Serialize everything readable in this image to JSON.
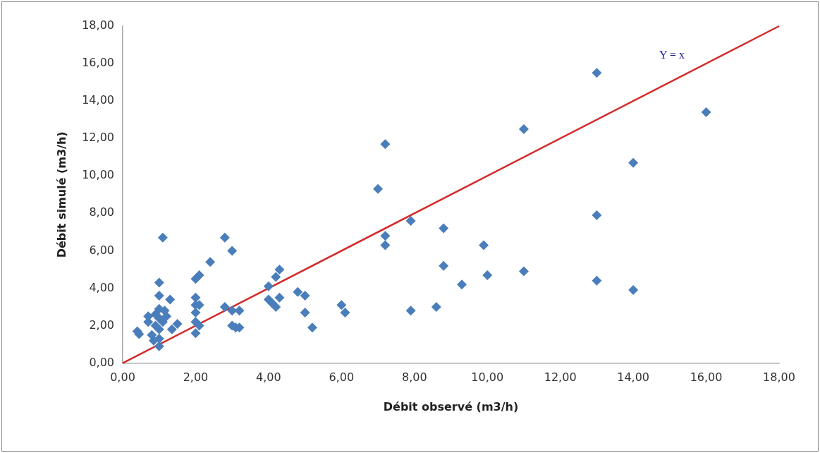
{
  "chart_data": {
    "type": "scatter",
    "xlabel": "Débit observé (m3/h)",
    "ylabel": "Débit simulé (m3/h)",
    "xlim": [
      0,
      18
    ],
    "ylim": [
      0,
      18
    ],
    "xticks": [
      {
        "value": 0,
        "label": "0,00"
      },
      {
        "value": 2,
        "label": "2,00"
      },
      {
        "value": 4,
        "label": "4,00"
      },
      {
        "value": 6,
        "label": "6,00"
      },
      {
        "value": 8,
        "label": "8,00"
      },
      {
        "value": 10,
        "label": "10,00"
      },
      {
        "value": 12,
        "label": "12,00"
      },
      {
        "value": 14,
        "label": "14,00"
      },
      {
        "value": 16,
        "label": "16,00"
      },
      {
        "value": 18,
        "label": "18,00"
      }
    ],
    "yticks": [
      {
        "value": 0,
        "label": "0,00"
      },
      {
        "value": 2,
        "label": "2,00"
      },
      {
        "value": 4,
        "label": "4,00"
      },
      {
        "value": 6,
        "label": "6,00"
      },
      {
        "value": 8,
        "label": "8,00"
      },
      {
        "value": 10,
        "label": "10,00"
      },
      {
        "value": 12,
        "label": "12,00"
      },
      {
        "value": 14,
        "label": "14,00"
      },
      {
        "value": 16,
        "label": "16,00"
      },
      {
        "value": 18,
        "label": "18,00"
      }
    ],
    "grid": false,
    "legend": false,
    "marker": "diamond",
    "series": [
      {
        "type": "scatter",
        "color": "#4a7ebb",
        "x": [
          0.4,
          0.45,
          0.7,
          0.7,
          0.8,
          0.85,
          0.9,
          0.9,
          1.0,
          1.0,
          1.0,
          1.0,
          1.0,
          1.0,
          1.0,
          1.1,
          1.1,
          1.15,
          1.2,
          1.3,
          1.35,
          1.5,
          2.0,
          2.0,
          2.0,
          2.0,
          2.0,
          2.0,
          2.1,
          2.1,
          2.1,
          2.4,
          2.8,
          2.8,
          3.0,
          3.0,
          3.0,
          3.1,
          3.2,
          3.2,
          4.0,
          4.0,
          4.1,
          4.2,
          4.2,
          4.3,
          4.3,
          4.8,
          5.0,
          5.0,
          5.2,
          6.0,
          6.1,
          7.0,
          7.2,
          7.2,
          7.2,
          7.9,
          7.9,
          8.6,
          8.8,
          8.8,
          9.3,
          9.9,
          10.0,
          11.0,
          11.0,
          13.0,
          13.0,
          13.0,
          14.0,
          14.0,
          16.0
        ],
        "values": [
          1.7,
          1.55,
          2.5,
          2.2,
          1.5,
          1.2,
          2.6,
          2.0,
          0.9,
          1.3,
          1.8,
          2.4,
          2.9,
          3.6,
          4.3,
          2.2,
          6.7,
          2.8,
          2.5,
          3.4,
          1.8,
          2.1,
          1.6,
          2.2,
          2.7,
          3.1,
          3.5,
          4.5,
          4.7,
          3.1,
          2.0,
          5.4,
          6.7,
          3.0,
          6.0,
          2.8,
          2.0,
          1.9,
          1.9,
          2.8,
          4.1,
          3.4,
          3.2,
          4.6,
          3.0,
          5.0,
          3.5,
          3.8,
          3.6,
          2.7,
          1.9,
          3.1,
          2.7,
          9.3,
          11.7,
          6.8,
          6.3,
          7.6,
          2.8,
          3.0,
          7.2,
          5.2,
          4.2,
          6.3,
          4.7,
          12.5,
          4.9,
          15.5,
          7.9,
          4.4,
          10.7,
          3.9,
          13.4
        ]
      },
      {
        "type": "line",
        "name": "Y = x",
        "color": "#d42a2a",
        "marker": "none",
        "x": [
          0,
          18
        ],
        "values": [
          0,
          18
        ]
      }
    ]
  }
}
